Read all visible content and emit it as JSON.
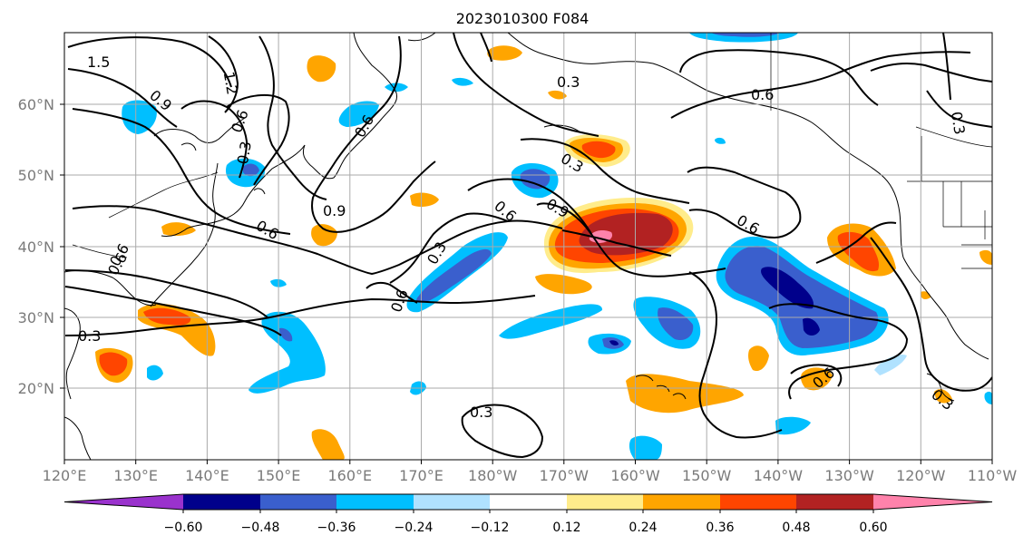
{
  "title": "2023010300 F084",
  "x_ticks": [
    "120°E",
    "130°E",
    "140°E",
    "150°E",
    "160°E",
    "170°E",
    "180°W",
    "170°W",
    "160°W",
    "150°W",
    "140°W",
    "130°W",
    "120°W",
    "110°W"
  ],
  "y_ticks": [
    "20°N",
    "30°N",
    "40°N",
    "50°N",
    "60°N"
  ],
  "colorbar": {
    "labels": [
      "−0.60",
      "−0.48",
      "−0.36",
      "−0.24",
      "−0.12",
      "0.12",
      "0.24",
      "0.36",
      "0.48",
      "0.60"
    ],
    "colors": [
      "#9a32cd",
      "#00008b",
      "#3a5fcd",
      "#00bfff",
      "#b0e2ff",
      "#ffffff",
      "#ffec8b",
      "#ffa500",
      "#ff4500",
      "#b22222",
      "#ff82ab"
    ]
  },
  "contour_labels": [
    "1.5",
    "1.2",
    "0.9",
    "0.6",
    "0.3",
    "0.6",
    "0.9",
    "0.3",
    "0.6",
    "0.3",
    "0.9",
    "0.6",
    "0.3",
    "0.6",
    "0.6",
    "0.3",
    "0.6",
    "0.6",
    "0.3",
    "0.3",
    "0.6",
    "0.6",
    "0.3"
  ]
}
